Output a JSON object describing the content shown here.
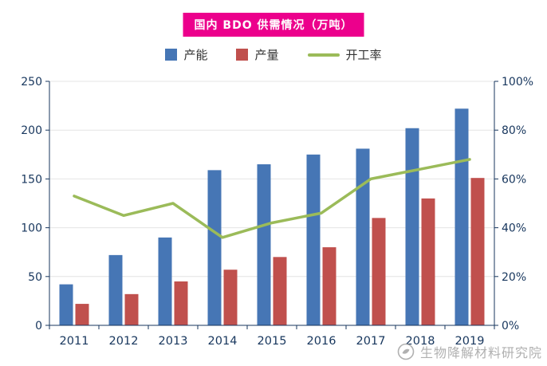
{
  "header": {
    "title": "国内 BDO 供需情况（万吨）",
    "bg_color": "#EC008C"
  },
  "legend": {
    "items": [
      {
        "key": "capacity",
        "label": "产能",
        "color": "#4676B5",
        "swatch": "square"
      },
      {
        "key": "production",
        "label": "产量",
        "color": "#C0504D",
        "swatch": "square"
      },
      {
        "key": "operating-rate",
        "label": "开工率",
        "color": "#9BBB59",
        "swatch": "line"
      }
    ]
  },
  "watermark": {
    "text": "生物降解材料研究院",
    "logo": "circle-leaf-logo"
  },
  "chart_data": {
    "type": "bar+line",
    "title": "国内 BDO 供需情况（万吨）",
    "categories": [
      "2011",
      "2012",
      "2013",
      "2014",
      "2015",
      "2016",
      "2017",
      "2018",
      "2019"
    ],
    "series": [
      {
        "name": "产能",
        "key": "capacity",
        "type": "bar",
        "axis": "left",
        "color": "#4676B5",
        "values": [
          42,
          72,
          90,
          159,
          165,
          175,
          181,
          202,
          222
        ]
      },
      {
        "name": "产量",
        "key": "production",
        "type": "bar",
        "axis": "left",
        "color": "#C0504D",
        "values": [
          22,
          32,
          45,
          57,
          70,
          80,
          110,
          130,
          151
        ]
      },
      {
        "name": "开工率",
        "key": "operating-rate",
        "type": "line",
        "axis": "right",
        "color": "#9BBB59",
        "values": [
          53,
          45,
          50,
          36,
          42,
          46,
          60,
          64,
          68
        ]
      }
    ],
    "left_axis": {
      "min": 0,
      "max": 250,
      "step": 50,
      "suffix": ""
    },
    "right_axis": {
      "min": 0,
      "max": 100,
      "step": 20,
      "suffix": "%"
    },
    "grid": true,
    "legend_position": "top",
    "axis_color": "#17365D"
  }
}
